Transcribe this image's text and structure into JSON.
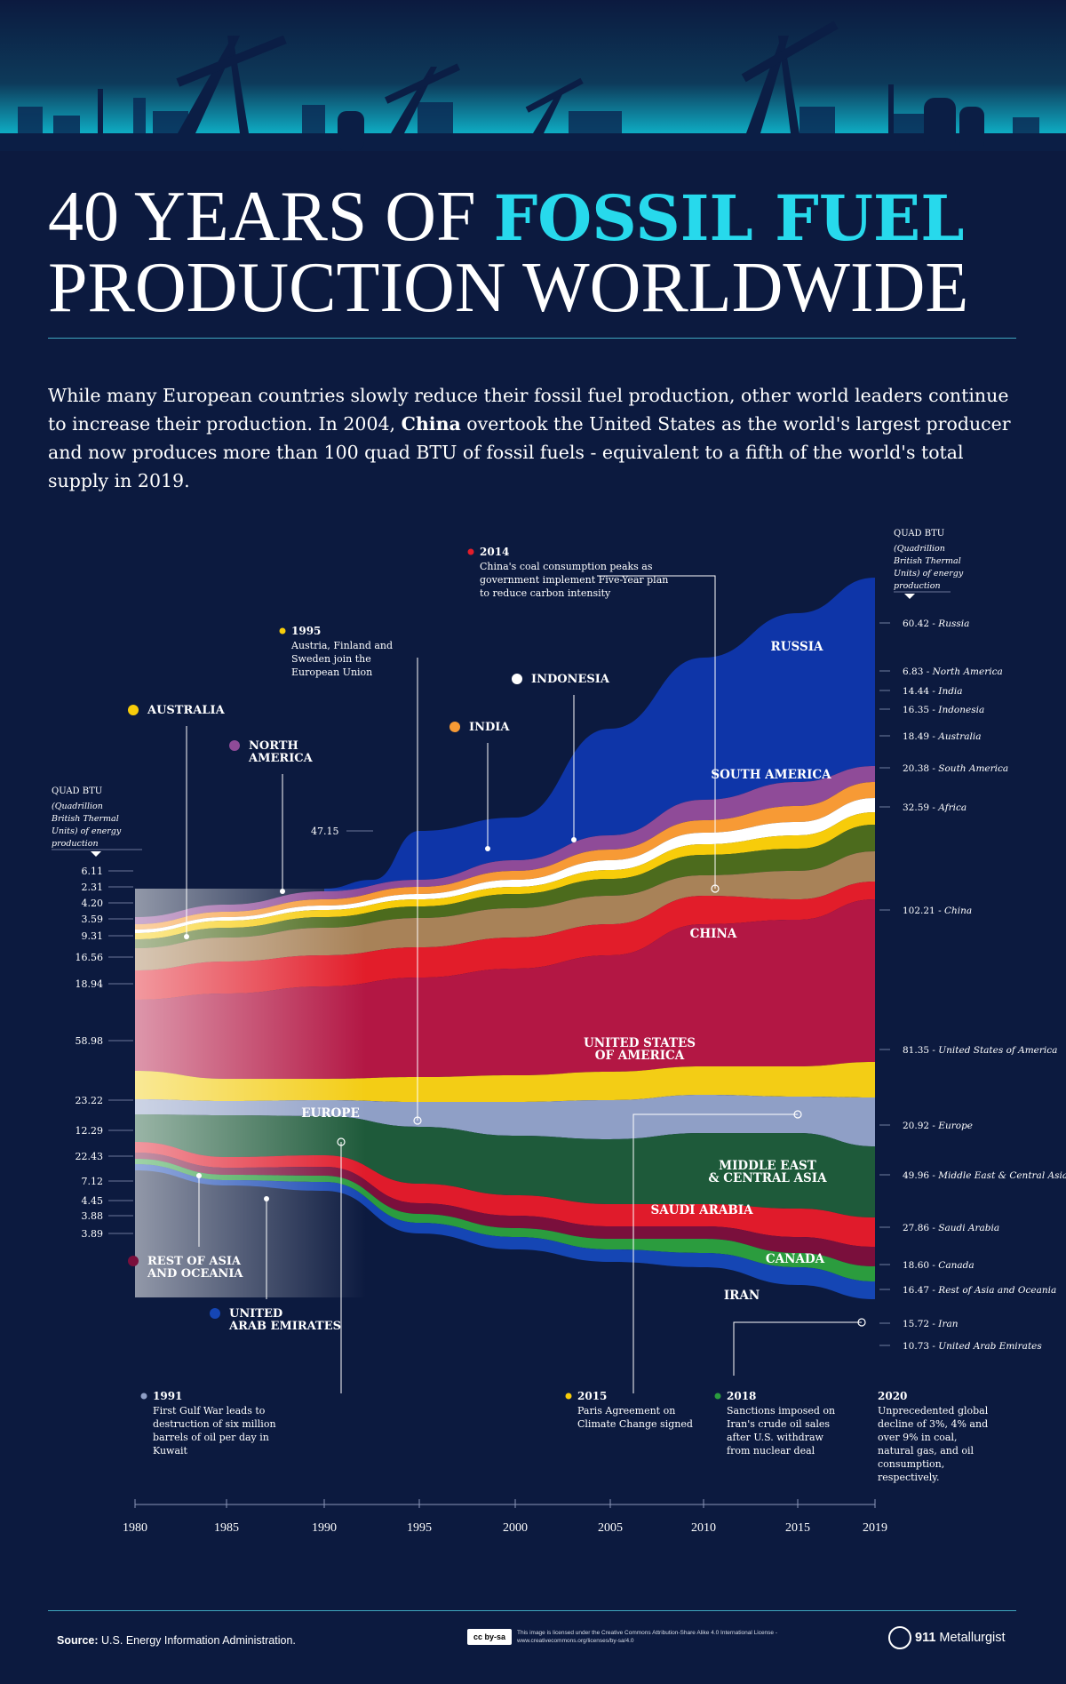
{
  "header": {
    "title_line1_plain": "40 YEARS OF ",
    "title_line1_accent": "FOSSIL FUEL",
    "title_line2": "PRODUCTION WORLDWIDE",
    "intro_part1": "While many European countries slowly reduce their fossil fuel production, other world leaders continue to increase their production. In 2004, ",
    "intro_bold": "China",
    "intro_part2": " overtook the United States as the world's largest producer and now produces more than 100 quad BTU of fossil fuels - equivalent to a fifth of the world's total supply in 2019."
  },
  "colors": {
    "background": "#0c1a3f",
    "accent": "#27d9ec"
  },
  "chart_data": {
    "type": "area",
    "subtype": "streamgraph",
    "x": [
      1980,
      1985,
      1990,
      1995,
      2000,
      2005,
      2010,
      2015,
      2019
    ],
    "unit_label": "QUAD BTU",
    "unit_sub": "(Quadrillion British Thermal Units) of energy production",
    "series": [
      {
        "name": "Russia",
        "label": "RUSSIA",
        "color": "#0e35a8",
        "start": "",
        "end": "60.42 - Russia"
      },
      {
        "name": "North America",
        "label": "",
        "color": "#8f4b98",
        "start": "6.11",
        "end": "6.83 - North America"
      },
      {
        "name": "India",
        "label": "",
        "color": "#f79a35",
        "start": "2.31",
        "end": "14.44 - India"
      },
      {
        "name": "Indonesia",
        "label": "",
        "color": "#ffffff",
        "start": "4.20",
        "end": "16.35 - Indonesia"
      },
      {
        "name": "Australia",
        "label": "",
        "color": "#f7cc0a",
        "start": "3.59",
        "end": "18.49 - Australia"
      },
      {
        "name": "South America",
        "label": "SOUTH AMERICA",
        "color": "#4c6b1d",
        "start": "9.31",
        "end": "20.38 - South America"
      },
      {
        "name": "Africa",
        "label": "",
        "color": "#a88258",
        "start": "16.56",
        "end": "32.59 - Africa"
      },
      {
        "name": "China",
        "label": "CHINA",
        "color": "#e21d2a",
        "start": "18.94",
        "end": "102.21 - China"
      },
      {
        "name": "United States of America",
        "label": "UNITED STATES OF AMERICA",
        "color": "#b31744",
        "start": "58.98",
        "end": "81.35 - United States of America"
      },
      {
        "name": "Europe",
        "label": "EUROPE",
        "color": "#f3cd15",
        "start": "23.22",
        "end": "20.92 - Europe"
      },
      {
        "name": "Middle East & Central Asia",
        "label": "MIDDLE EAST & CENTRAL ASIA",
        "color": "#8f9fc6",
        "start": "12.29",
        "end": "49.96 - Middle East & Central Asia"
      },
      {
        "name": "Saudi Arabia",
        "label": "SAUDI ARABIA",
        "color": "#1e5a3a",
        "start": "22.43",
        "end": "27.86 - Saudi Arabia"
      },
      {
        "name": "Canada",
        "label": "CANADA",
        "color": "#e01b2b",
        "start": "7.12",
        "end": "18.60 - Canada"
      },
      {
        "name": "Rest of Asia and Oceania",
        "label": "",
        "color": "#7a0f3c",
        "start": "4.45",
        "end": "16.47 - Rest of Asia and Oceania"
      },
      {
        "name": "Iran",
        "label": "IRAN",
        "color": "#2b9c3e",
        "start": "3.88",
        "end": "15.72 - Iran"
      },
      {
        "name": "United Arab Emirates",
        "label": "",
        "color": "#1546b4",
        "start": "3.89",
        "end": "10.73 - United Arab Emirates"
      }
    ],
    "peak_label": "47.15",
    "legend_labels": [
      {
        "text": "AUSTRALIA",
        "color": "#f7cc0a"
      },
      {
        "text": "NORTH AMERICA",
        "color": "#8f4b98"
      },
      {
        "text": "INDIA",
        "color": "#f79a35"
      },
      {
        "text": "INDONESIA",
        "color": "#ffffff"
      },
      {
        "text": "REST OF ASIA AND OCEANIA",
        "color": "#7a0f3c"
      },
      {
        "text": "UNITED ARAB EMIRATES",
        "color": "#1546b4"
      }
    ],
    "annotations": [
      {
        "year": "2014",
        "color": "#e21d2a",
        "text": "China's coal consumption peaks as government implement Five-Year plan to reduce carbon intensity"
      },
      {
        "year": "1995",
        "color": "#f7cc0a",
        "text": "Austria, Finland and Sweden join the European Union"
      },
      {
        "year": "1991",
        "color": "#8f9fc6",
        "text": "First Gulf War leads to destruction of six million barrels of oil per day in Kuwait"
      },
      {
        "year": "2015",
        "color": "#f7cc0a",
        "text": "Paris Agreement on Climate Change signed"
      },
      {
        "year": "2018",
        "color": "#2b9c3e",
        "text": "Sanctions imposed on Iran's crude oil sales after U.S. withdraw from nuclear deal"
      },
      {
        "year": "2020",
        "color": "",
        "text": "Unprecedented global decline of 3%, 4% and over 9% in coal, natural gas, and oil consumption, respectively."
      }
    ],
    "x_ticks": [
      "1980",
      "1985",
      "1990",
      "1995",
      "2000",
      "2005",
      "2010",
      "2015",
      "2019"
    ]
  },
  "footer": {
    "source_label": "Source:",
    "source_text": "U.S. Energy Information Administration.",
    "cc_badge": "cc by-sa",
    "license": "This image is licensed under the Creative Commons Attribution-Share Alike 4.0 International License - www.creativecommons.org/licenses/by-sa/4.0",
    "brand_num": "911",
    "brand_name": "Metallurgist"
  }
}
